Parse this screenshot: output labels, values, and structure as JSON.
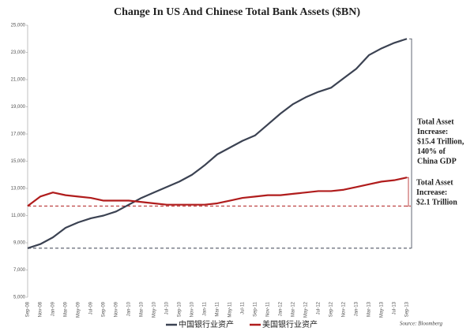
{
  "chart_data": {
    "type": "line",
    "title": "Change In US And Chinese Total Bank Assets ($BN)",
    "categories": [
      "Sep-08",
      "Nov-08",
      "Jan-09",
      "Mar-09",
      "May-09",
      "Jul-09",
      "Sep-09",
      "Nov-09",
      "Jan-10",
      "Mar-10",
      "May-10",
      "Jul-10",
      "Sep-10",
      "Nov-10",
      "Jan-11",
      "Mar-11",
      "May-11",
      "Jul-11",
      "Sep-11",
      "Nov-11",
      "Jan-12",
      "Mar-12",
      "May-12",
      "Jul-12",
      "Sep-12",
      "Nov-12",
      "Jan-13",
      "Mar-13",
      "May-13",
      "Jul-13",
      "Sep-13"
    ],
    "series": [
      {
        "name": "中国银行业资产",
        "color": "#3b4252",
        "values": [
          8600,
          8900,
          9400,
          10100,
          10500,
          10800,
          11000,
          11300,
          11800,
          12300,
          12700,
          13100,
          13500,
          14000,
          14700,
          15500,
          16000,
          16500,
          16900,
          17700,
          18500,
          19200,
          19700,
          20100,
          20400,
          21100,
          21800,
          22800,
          23300,
          23700,
          24000
        ]
      },
      {
        "name": "美国银行业资产",
        "color": "#b01c1c",
        "values": [
          11700,
          12400,
          12700,
          12500,
          12400,
          12300,
          12100,
          12100,
          12100,
          12000,
          11900,
          11800,
          11800,
          11800,
          11800,
          11900,
          12100,
          12300,
          12400,
          12500,
          12500,
          12600,
          12700,
          12800,
          12800,
          12900,
          13100,
          13300,
          13500,
          13600,
          13800
        ]
      }
    ],
    "ylim": [
      5000,
      25000
    ],
    "yticks": [
      {
        "value": 5000,
        "label": "5,000"
      },
      {
        "value": 7000,
        "label": "7,000"
      },
      {
        "value": 9000,
        "label": "9,000"
      },
      {
        "value": 11000,
        "label": "11,000"
      },
      {
        "value": 13000,
        "label": "13,000"
      },
      {
        "value": 15000,
        "label": "15,000"
      },
      {
        "value": 17000,
        "label": "17,000"
      },
      {
        "value": 19000,
        "label": "19,000"
      },
      {
        "value": 21000,
        "label": "21,000"
      },
      {
        "value": 23000,
        "label": "23,000"
      },
      {
        "value": 25000,
        "label": "25,000"
      }
    ],
    "reference_lines": [
      {
        "value": 11700,
        "color": "#b01c1c"
      },
      {
        "value": 8600,
        "color": "#3b4252"
      }
    ],
    "annotations": [
      {
        "lines": [
          "Total Asset",
          "Increase:",
          "$15.4 Trillion,",
          "140% of",
          "China GDP"
        ]
      },
      {
        "lines": [
          "Total Asset",
          "Increase:",
          "$2.1 Trillion"
        ]
      }
    ],
    "source": "Source: Bloomberg",
    "grid": false,
    "legend": "bottom"
  }
}
